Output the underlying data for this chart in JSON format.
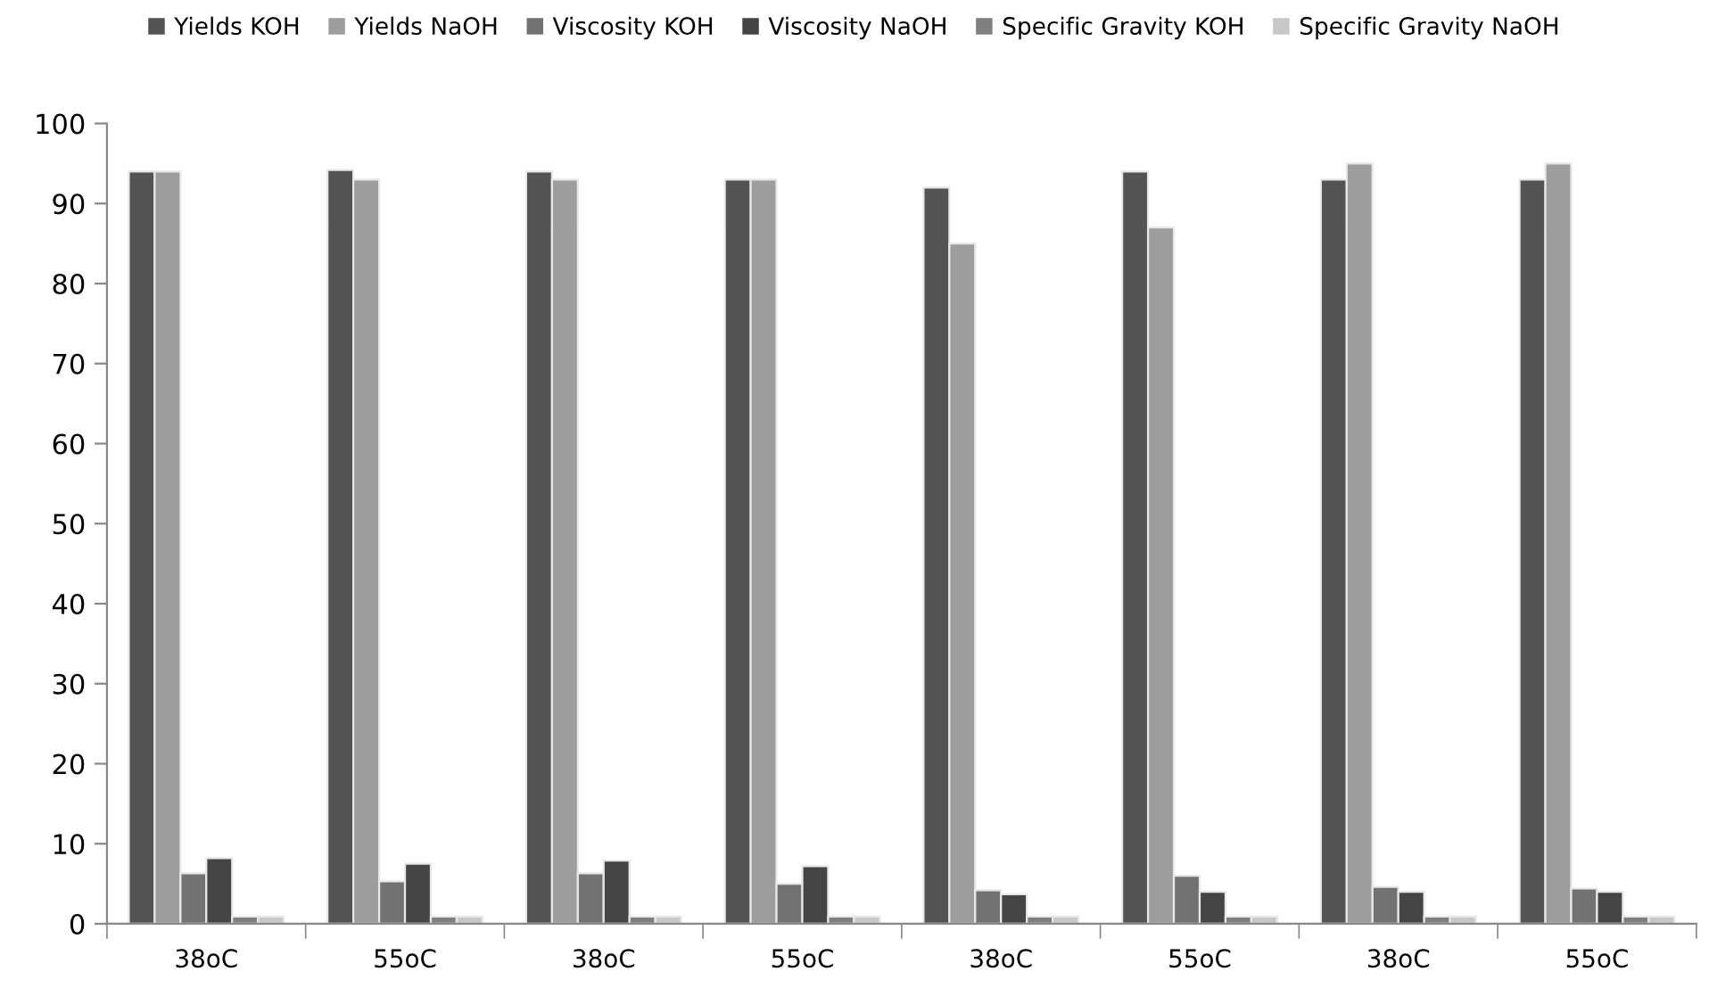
{
  "chart_data": {
    "type": "bar",
    "categories": [
      "38oC",
      "55oC",
      "38oC",
      "55oC",
      "38oC",
      "55oC",
      "38oC",
      "55oC"
    ],
    "series": [
      {
        "name": "Yields KOH",
        "color": "#535353",
        "values": [
          94,
          94.2,
          94,
          93,
          92,
          94,
          93,
          93
        ]
      },
      {
        "name": "Yields NaOH",
        "color": "#9d9d9d",
        "values": [
          94,
          93,
          93,
          93,
          85,
          87,
          95,
          95
        ]
      },
      {
        "name": "Viscosity KOH",
        "color": "#727272",
        "values": [
          6.3,
          5.3,
          6.3,
          5,
          4.2,
          6,
          4.6,
          4.4
        ]
      },
      {
        "name": "Viscosity NaOH",
        "color": "#454545",
        "values": [
          8.2,
          7.5,
          7.9,
          7.2,
          3.7,
          4,
          4,
          4
        ]
      },
      {
        "name": "Specific Gravity KOH",
        "color": "#7f7f7f",
        "values": [
          0.9,
          0.9,
          0.9,
          0.9,
          0.9,
          0.9,
          0.9,
          0.9
        ]
      },
      {
        "name": "Specific Gravity NaOH",
        "color": "#c8c8c8",
        "values": [
          0.9,
          0.9,
          0.9,
          0.9,
          0.9,
          0.9,
          0.9,
          0.9
        ]
      }
    ],
    "ylim": [
      0,
      100
    ],
    "yticks": [
      0,
      10,
      20,
      30,
      40,
      50,
      60,
      70,
      80,
      90,
      100
    ],
    "grid": false,
    "legend": "top"
  }
}
